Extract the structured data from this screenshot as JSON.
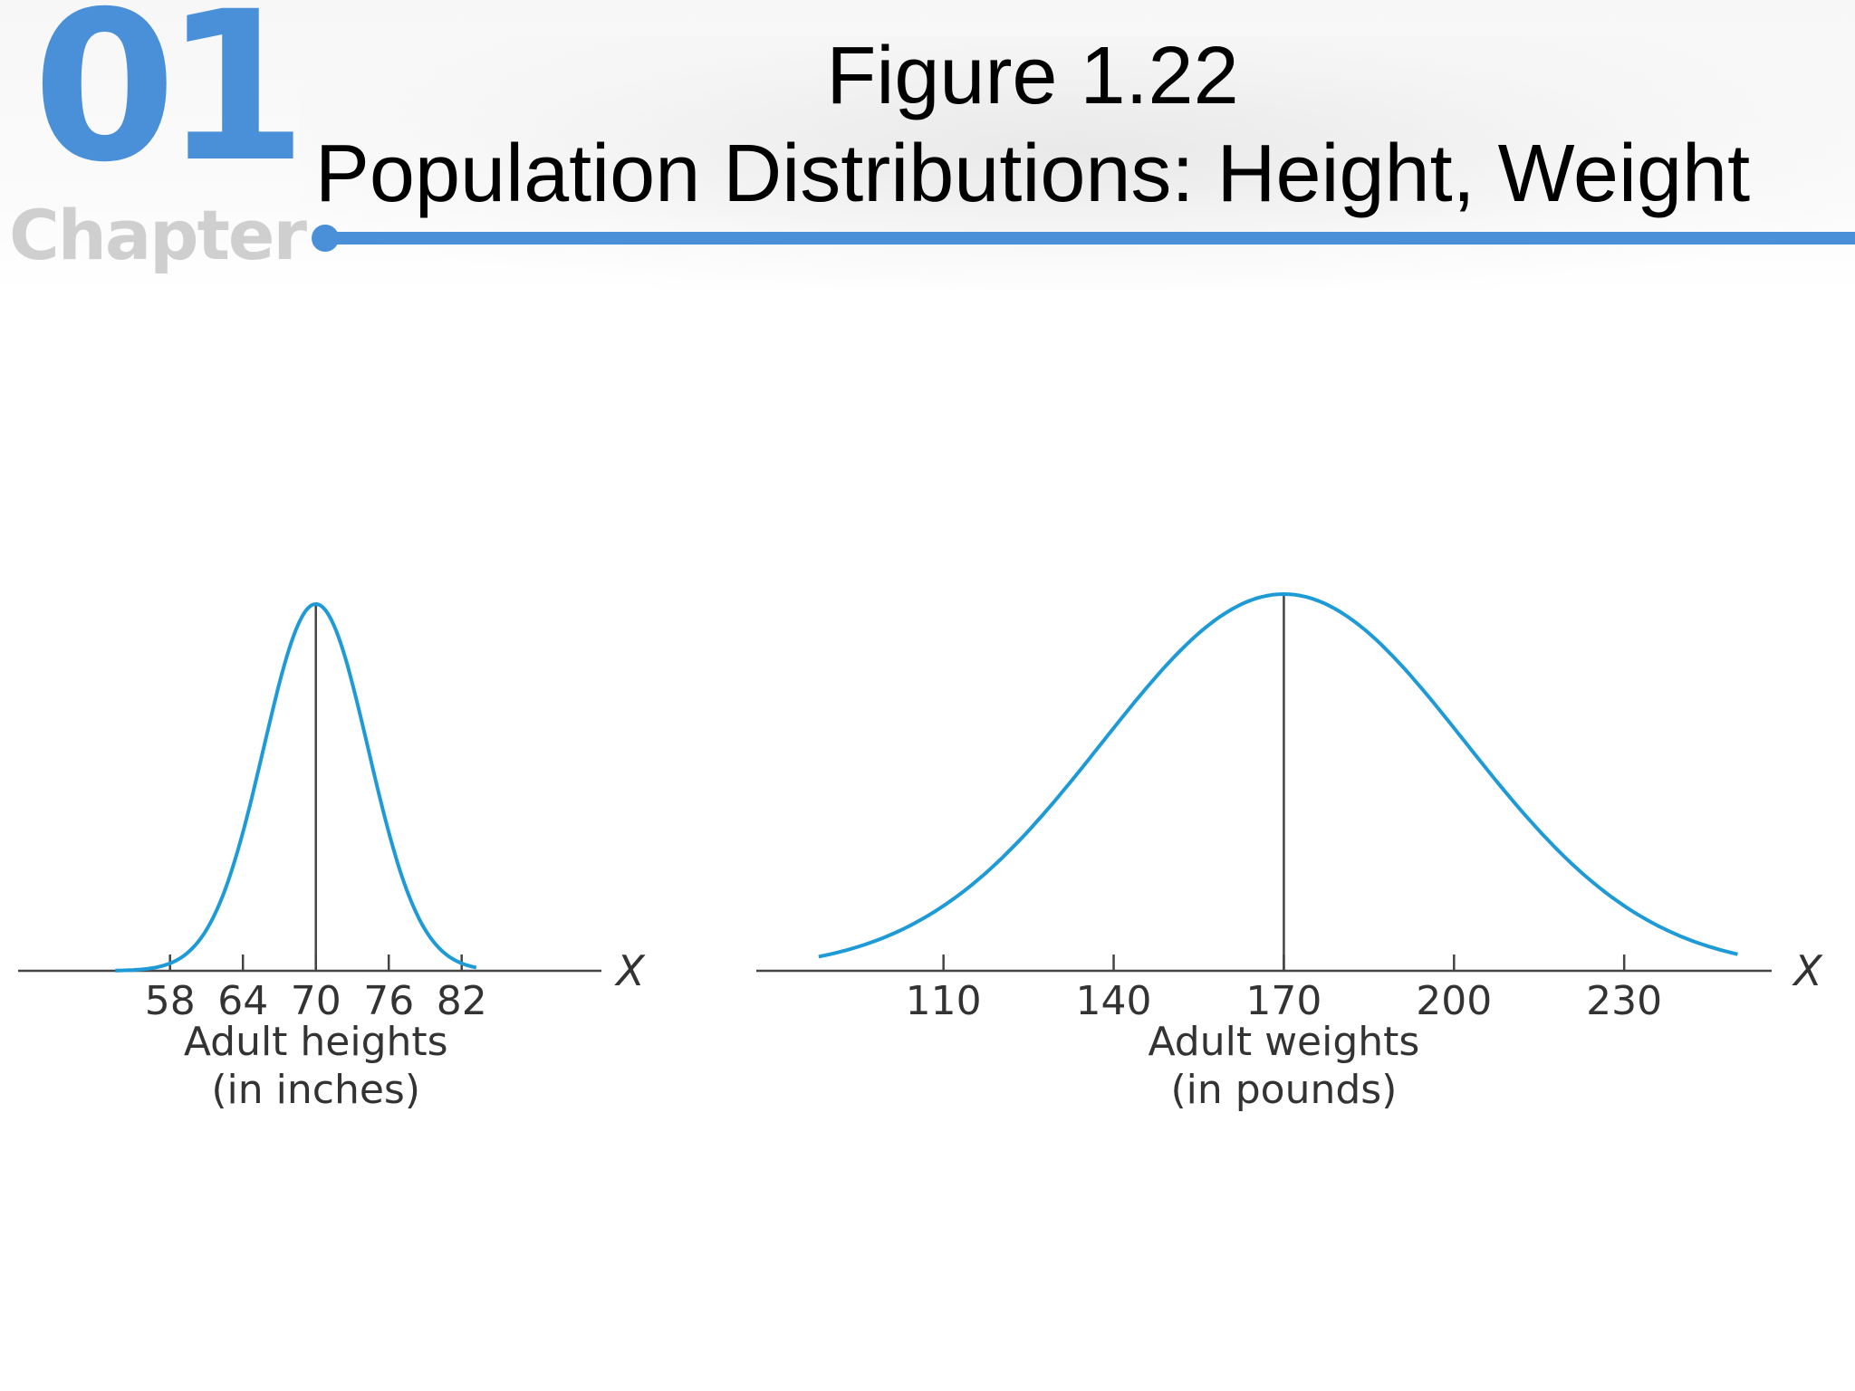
{
  "header": {
    "chapter_number": "01",
    "chapter_word": "Chapter",
    "title_line1": "Figure 1.22",
    "title_line2": "Population Distributions: Height, Weight",
    "accent_color": "#4a90d9"
  },
  "chart_data": [
    {
      "type": "line",
      "curve": "normal",
      "mean": 70,
      "sd": 4.3,
      "x_range": [
        53.5,
        83.2
      ],
      "xlim": [
        45.5,
        93.5
      ],
      "axis_var": "X",
      "xticks": [
        58,
        64,
        70,
        76,
        82
      ],
      "xticklabels": [
        "58",
        "64",
        "70",
        "76",
        "82"
      ],
      "xlabel_line1": "Adult heights",
      "xlabel_line2": "(in inches)",
      "mean_line": true,
      "curve_color": "#1e9ad6"
    },
    {
      "type": "line",
      "curve": "normal",
      "mean": 170,
      "sd": 32,
      "x_range": [
        88,
        250
      ],
      "xlim": [
        77,
        256
      ],
      "axis_var": "X",
      "xticks": [
        110,
        140,
        170,
        200,
        230
      ],
      "xticklabels": [
        "110",
        "140",
        "170",
        "200",
        "230"
      ],
      "xlabel_line1": "Adult weights",
      "xlabel_line2": "(in pounds)",
      "mean_line": true,
      "curve_color": "#1e9ad6"
    }
  ]
}
